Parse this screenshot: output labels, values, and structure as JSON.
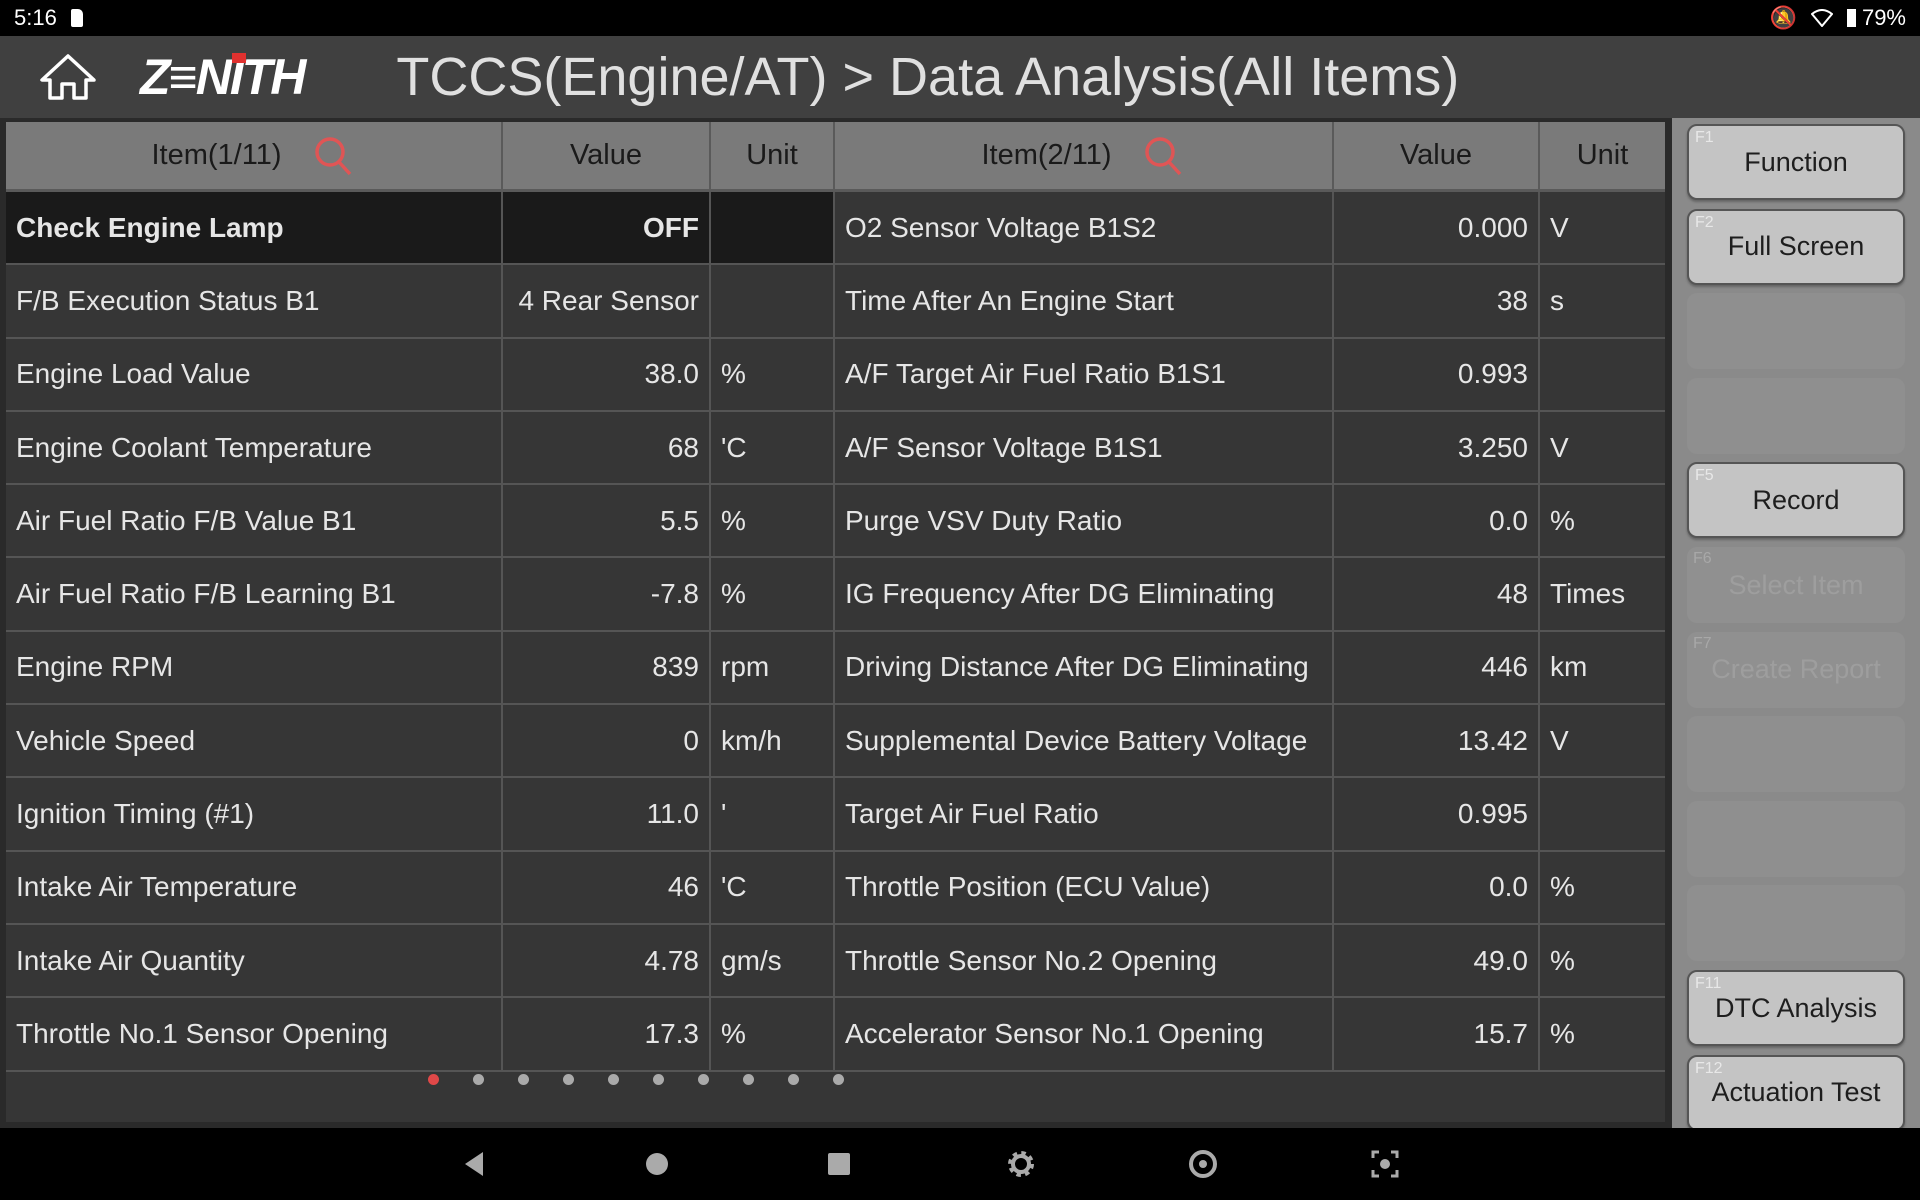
{
  "status": {
    "time": "5:16",
    "battery": "79%"
  },
  "header": {
    "title": "TCCS(Engine/AT) > Data Analysis(All Items)",
    "logo": "ZENITH"
  },
  "table": {
    "left_header": {
      "item": "Item(1/11)",
      "value": "Value",
      "unit": "Unit"
    },
    "right_header": {
      "item": "Item(2/11)",
      "value": "Value",
      "unit": "Unit"
    },
    "rows": [
      {
        "l": [
          "Check Engine Lamp",
          "OFF",
          ""
        ],
        "r": [
          "O2 Sensor Voltage B1S2",
          "0.000",
          "V"
        ]
      },
      {
        "l": [
          "F/B Execution Status B1",
          "4 Rear Sensor",
          ""
        ],
        "r": [
          "Time After An Engine Start",
          "38",
          "s"
        ]
      },
      {
        "l": [
          "Engine Load Value",
          "38.0",
          "%"
        ],
        "r": [
          "A/F Target Air Fuel Ratio B1S1",
          "0.993",
          ""
        ]
      },
      {
        "l": [
          "Engine Coolant Temperature",
          "68",
          "'C"
        ],
        "r": [
          "A/F Sensor Voltage B1S1",
          "3.250",
          "V"
        ]
      },
      {
        "l": [
          "Air Fuel Ratio F/B Value B1",
          "5.5",
          "%"
        ],
        "r": [
          "Purge VSV Duty Ratio",
          "0.0",
          "%"
        ]
      },
      {
        "l": [
          "Air Fuel Ratio F/B Learning B1",
          "-7.8",
          "%"
        ],
        "r": [
          "IG Frequency After DG Eliminating",
          "48",
          "Times"
        ]
      },
      {
        "l": [
          "Engine RPM",
          "839",
          "rpm"
        ],
        "r": [
          "Driving Distance After DG Eliminating",
          "446",
          "km"
        ]
      },
      {
        "l": [
          "Vehicle Speed",
          "0",
          "km/h"
        ],
        "r": [
          "Supplemental Device Battery Voltage",
          "13.42",
          "V"
        ]
      },
      {
        "l": [
          "Ignition Timing (#1)",
          "11.0",
          "'"
        ],
        "r": [
          "Target Air Fuel Ratio",
          "0.995",
          ""
        ]
      },
      {
        "l": [
          "Intake Air Temperature",
          "46",
          "'C"
        ],
        "r": [
          "Throttle Position (ECU Value)",
          "0.0",
          "%"
        ]
      },
      {
        "l": [
          "Intake Air Quantity",
          "4.78",
          "gm/s"
        ],
        "r": [
          "Throttle Sensor No.2 Opening",
          "49.0",
          "%"
        ]
      },
      {
        "l": [
          "Throttle No.1 Sensor Opening",
          "17.3",
          "%"
        ],
        "r": [
          "Accelerator Sensor No.1 Opening",
          "15.7",
          "%"
        ]
      }
    ]
  },
  "pagination": {
    "pages": 10,
    "current": 1
  },
  "functions": [
    {
      "key": "F1",
      "label": "Function",
      "state": "enabled"
    },
    {
      "key": "F2",
      "label": "Full Screen",
      "state": "enabled"
    },
    {
      "key": "",
      "label": "",
      "state": "empty"
    },
    {
      "key": "",
      "label": "",
      "state": "empty"
    },
    {
      "key": "F5",
      "label": "Record",
      "state": "enabled"
    },
    {
      "key": "F6",
      "label": "Select Item",
      "state": "disabled"
    },
    {
      "key": "F7",
      "label": "Create Report",
      "state": "disabled"
    },
    {
      "key": "",
      "label": "",
      "state": "empty"
    },
    {
      "key": "",
      "label": "",
      "state": "empty"
    },
    {
      "key": "",
      "label": "",
      "state": "empty"
    },
    {
      "key": "F11",
      "label": "DTC Analysis",
      "state": "enabled"
    },
    {
      "key": "F12",
      "label": "Actuation Test",
      "state": "enabled"
    }
  ],
  "colors": {
    "accent": "#e04848",
    "header_bg": "#404040",
    "row_bg": "#363636",
    "selected_row_bg": "#1a1a1a"
  }
}
